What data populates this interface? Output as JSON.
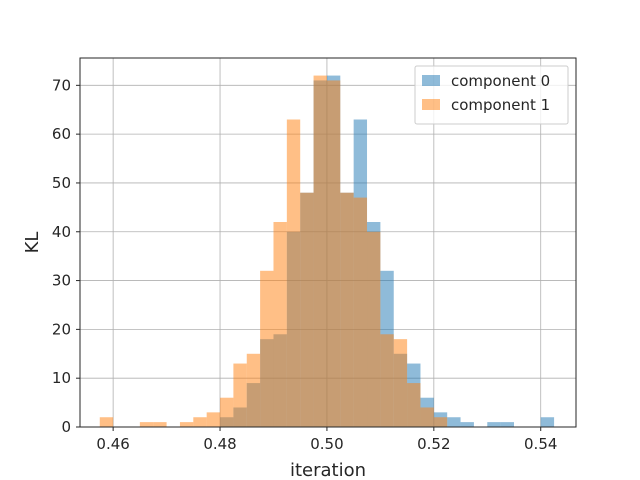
{
  "chart_data": {
    "type": "histogram",
    "xlabel": "iteration",
    "ylabel": "KL",
    "xlim": [
      0.4538,
      0.5466
    ],
    "ylim": [
      0,
      75.6
    ],
    "xticks": [
      0.46,
      0.48,
      0.5,
      0.52,
      0.54
    ],
    "yticks": [
      0,
      10,
      20,
      30,
      40,
      50,
      60,
      70
    ],
    "grid": true,
    "legend_position": "top-right",
    "bin_width": 0.0025,
    "series": [
      {
        "name": "component 0",
        "color": "#1f77b4",
        "alpha": 0.5,
        "bins": [
          [
            0.48,
            0.4825,
            2
          ],
          [
            0.4825,
            0.485,
            4
          ],
          [
            0.485,
            0.4875,
            9
          ],
          [
            0.4875,
            0.49,
            18
          ],
          [
            0.49,
            0.4925,
            19
          ],
          [
            0.4925,
            0.495,
            40
          ],
          [
            0.495,
            0.4975,
            48
          ],
          [
            0.4975,
            0.5,
            71
          ],
          [
            0.5,
            0.5025,
            72
          ],
          [
            0.5025,
            0.505,
            48
          ],
          [
            0.505,
            0.5075,
            63
          ],
          [
            0.5075,
            0.51,
            42
          ],
          [
            0.51,
            0.5125,
            32
          ],
          [
            0.5125,
            0.515,
            15
          ],
          [
            0.515,
            0.5175,
            13
          ],
          [
            0.5175,
            0.52,
            6
          ],
          [
            0.52,
            0.5225,
            3
          ],
          [
            0.5225,
            0.525,
            2
          ],
          [
            0.525,
            0.5275,
            1
          ],
          [
            0.53,
            0.5325,
            1
          ],
          [
            0.5325,
            0.535,
            1
          ],
          [
            0.54,
            0.5425,
            2
          ]
        ]
      },
      {
        "name": "component 1",
        "color": "#ff7f0e",
        "alpha": 0.5,
        "bins": [
          [
            0.4575,
            0.46,
            2
          ],
          [
            0.465,
            0.4675,
            1
          ],
          [
            0.4675,
            0.47,
            1
          ],
          [
            0.4725,
            0.475,
            1
          ],
          [
            0.475,
            0.4775,
            2
          ],
          [
            0.4775,
            0.48,
            3
          ],
          [
            0.48,
            0.4825,
            6
          ],
          [
            0.4825,
            0.485,
            13
          ],
          [
            0.485,
            0.4875,
            15
          ],
          [
            0.4875,
            0.49,
            32
          ],
          [
            0.49,
            0.4925,
            42
          ],
          [
            0.4925,
            0.495,
            63
          ],
          [
            0.495,
            0.4975,
            48
          ],
          [
            0.4975,
            0.5,
            72
          ],
          [
            0.5,
            0.5025,
            71
          ],
          [
            0.5025,
            0.505,
            48
          ],
          [
            0.505,
            0.5075,
            47
          ],
          [
            0.5075,
            0.51,
            40
          ],
          [
            0.51,
            0.5125,
            19
          ],
          [
            0.5125,
            0.515,
            18
          ],
          [
            0.515,
            0.5175,
            9
          ],
          [
            0.5175,
            0.52,
            4
          ],
          [
            0.52,
            0.5225,
            2
          ]
        ]
      }
    ]
  }
}
